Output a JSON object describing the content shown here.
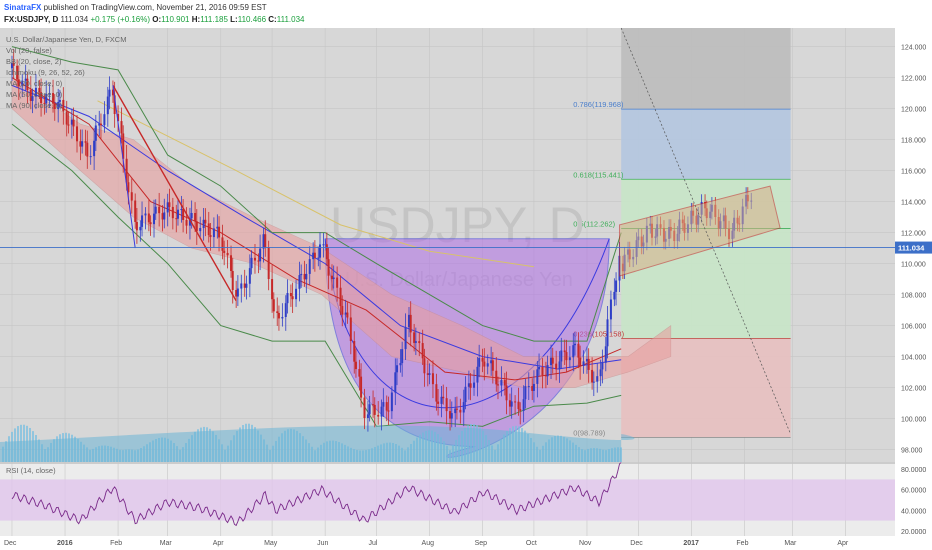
{
  "header": {
    "author": "SinatraFX",
    "published": "published on TradingView.com, November 21, 2016 09:59 EST",
    "symbol": "FX:USDJPY, D",
    "last": "111.034",
    "change": "+0.175 (+0.16%)",
    "open_label": "O:",
    "open": "110.901",
    "high_label": "H:",
    "high": "111.185",
    "low_label": "L:",
    "low": "110.466",
    "close_label": "C:",
    "close": "111.034"
  },
  "legend": [
    "U.S. Dollar/Japanese Yen, D, FXCM",
    "Vol (20, false)",
    "BB (20, close, 2)",
    "Ichimoku (9, 26, 52, 26)",
    "MA (20, close, 0)",
    "MA (50, close, 0)",
    "MA (90, close, 0)"
  ],
  "rsi_label": "RSI (14, close)",
  "watermark": "USDJPY, D",
  "watermark_sub": "U.S. Dollar/Japanese Yen",
  "colors": {
    "bull": "#2f3ec7",
    "bear": "#c62828",
    "cloud_bull": "#9ccc9c",
    "cloud_bear": "#e8a0a0",
    "cup": "#b06ee6",
    "fib_top": "#b4c6e0",
    "fib_mid": "#c8e6c8",
    "fib_low": "#e8c0c0",
    "volume": "#79bfe0",
    "rsi_line": "#7a2a8a",
    "rsi_band": "#e1c6ec",
    "price_tag": "#3c6fc8"
  },
  "chart_data": {
    "type": "candlestick",
    "symbol": "USDJPY",
    "timeframe": "D",
    "x_ticks": [
      "Dec",
      "2016",
      "Feb",
      "Mar",
      "Apr",
      "May",
      "Jun",
      "Jul",
      "Aug",
      "Sep",
      "Oct",
      "Nov",
      "Dec",
      "2017",
      "Feb",
      "Mar",
      "Apr"
    ],
    "y_ticks": [
      98,
      100,
      102,
      104,
      106,
      108,
      110,
      112,
      114,
      116,
      118,
      120,
      122,
      124
    ],
    "ylim": [
      97.2,
      125.2
    ],
    "last_price": 111.034,
    "close_path": [
      {
        "x": "2015-12-01",
        "y": 122.6
      },
      {
        "x": "2015-12-12",
        "y": 121.0
      },
      {
        "x": "2015-12-28",
        "y": 120.4
      },
      {
        "x": "2016-01-15",
        "y": 117.0
      },
      {
        "x": "2016-01-29",
        "y": 121.3
      },
      {
        "x": "2016-02-11",
        "y": 112.5
      },
      {
        "x": "2016-03-01",
        "y": 113.5
      },
      {
        "x": "2016-03-15",
        "y": 112.8
      },
      {
        "x": "2016-04-01",
        "y": 111.8
      },
      {
        "x": "2016-04-11",
        "y": 107.8
      },
      {
        "x": "2016-04-27",
        "y": 111.6
      },
      {
        "x": "2016-05-03",
        "y": 106.2
      },
      {
        "x": "2016-05-30",
        "y": 111.2
      },
      {
        "x": "2016-06-15",
        "y": 106.0
      },
      {
        "x": "2016-06-24",
        "y": 100.5
      },
      {
        "x": "2016-07-08",
        "y": 100.6
      },
      {
        "x": "2016-07-20",
        "y": 106.3
      },
      {
        "x": "2016-08-05",
        "y": 101.5
      },
      {
        "x": "2016-08-16",
        "y": 100.1
      },
      {
        "x": "2016-09-02",
        "y": 104.0
      },
      {
        "x": "2016-09-21",
        "y": 100.5
      },
      {
        "x": "2016-10-03",
        "y": 102.8
      },
      {
        "x": "2016-10-25",
        "y": 104.5
      },
      {
        "x": "2016-11-08",
        "y": 102.2
      },
      {
        "x": "2016-11-21",
        "y": 111.034
      }
    ],
    "projection_path": [
      {
        "x": "2016-11-22",
        "y": 110.0
      },
      {
        "x": "2016-12-08",
        "y": 112.2
      },
      {
        "x": "2016-12-20",
        "y": 111.8
      },
      {
        "x": "2017-01-10",
        "y": 113.6
      },
      {
        "x": "2017-01-25",
        "y": 112.0
      },
      {
        "x": "2017-02-06",
        "y": 114.8
      }
    ],
    "fib_levels": [
      {
        "label": "0.786(119.968)",
        "ratio": 0.786,
        "value": 119.968
      },
      {
        "label": "0.618(115.441)",
        "ratio": 0.618,
        "value": 115.441
      },
      {
        "label": "0.5(112.262)",
        "ratio": 0.5,
        "value": 112.262
      },
      {
        "label": "0.236(105.158)",
        "ratio": 0.236,
        "value": 105.158
      },
      {
        "label": "0(98.789)",
        "ratio": 0,
        "value": 98.789
      }
    ],
    "rsi_ticks": [
      20,
      40,
      60,
      80
    ],
    "rsi_ylim": [
      15,
      85
    ],
    "rsi_path": [
      {
        "x": "2015-12-01",
        "y": 55
      },
      {
        "x": "2015-12-20",
        "y": 45
      },
      {
        "x": "2016-01-10",
        "y": 30
      },
      {
        "x": "2016-01-29",
        "y": 62
      },
      {
        "x": "2016-02-11",
        "y": 30
      },
      {
        "x": "2016-03-01",
        "y": 48
      },
      {
        "x": "2016-03-20",
        "y": 42
      },
      {
        "x": "2016-04-11",
        "y": 28
      },
      {
        "x": "2016-04-27",
        "y": 55
      },
      {
        "x": "2016-05-03",
        "y": 40
      },
      {
        "x": "2016-05-30",
        "y": 60
      },
      {
        "x": "2016-06-24",
        "y": 30
      },
      {
        "x": "2016-07-20",
        "y": 62
      },
      {
        "x": "2016-08-16",
        "y": 38
      },
      {
        "x": "2016-09-02",
        "y": 58
      },
      {
        "x": "2016-09-21",
        "y": 40
      },
      {
        "x": "2016-10-25",
        "y": 62
      },
      {
        "x": "2016-11-08",
        "y": 48
      },
      {
        "x": "2016-11-21",
        "y": 84
      }
    ],
    "volume_level_fraction": [
      0.55,
      0.7,
      0.5,
      0.65,
      0.8,
      0.6
    ]
  }
}
